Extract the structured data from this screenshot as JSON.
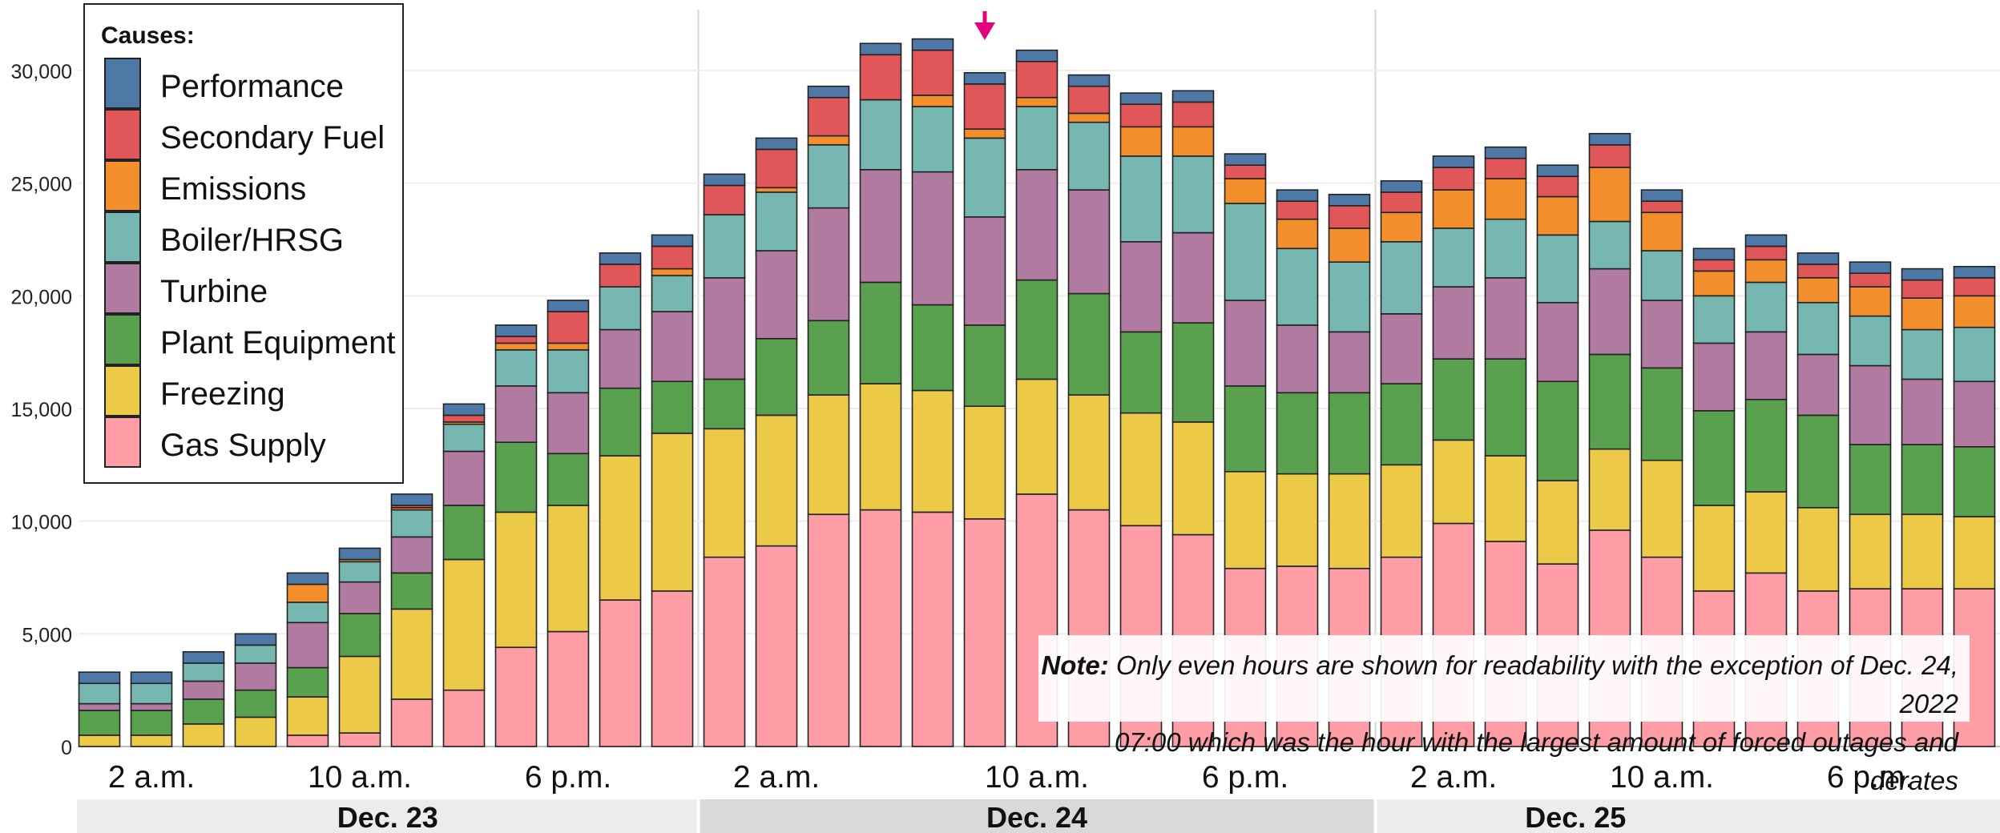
{
  "legend": {
    "title": "Causes:",
    "items": [
      {
        "label": "Performance",
        "color": "#4e79a7"
      },
      {
        "label": "Secondary Fuel",
        "color": "#e15759"
      },
      {
        "label": "Emissions",
        "color": "#f28e2b"
      },
      {
        "label": "Boiler/HRSG",
        "color": "#76b7b2"
      },
      {
        "label": "Turbine",
        "color": "#b07aa1"
      },
      {
        "label": "Plant Equipment",
        "color": "#59a14f"
      },
      {
        "label": "Freezing",
        "color": "#edc948"
      },
      {
        "label": "Gas Supply",
        "color": "#ff9da7"
      }
    ]
  },
  "note": {
    "bold": "Note:",
    "line1": "Only even hours are shown for readability with the exception of Dec. 24, 2022",
    "line2": "07:00 which was the hour with the largest amount of forced outages and derates"
  },
  "chart_data": {
    "type": "bar",
    "stacked": true,
    "ylim": [
      0,
      32000
    ],
    "yticks": [
      0,
      5000,
      10000,
      15000,
      20000,
      25000,
      30000
    ],
    "ytick_labels": [
      "0",
      "5,000",
      "10,000",
      "15,000",
      "20,000",
      "25,000",
      "30,000"
    ],
    "grid": true,
    "highlight_index": 17,
    "day_groups": [
      {
        "label": "Dec. 23",
        "start": 0,
        "end": 11
      },
      {
        "label": "Dec. 24",
        "start": 12,
        "end": 24
      },
      {
        "label": "Dec. 25",
        "start": 25,
        "end": 36
      }
    ],
    "tick_labels": [
      {
        "index": 1,
        "label": "2 a.m."
      },
      {
        "index": 5,
        "label": "10 a.m."
      },
      {
        "index": 9,
        "label": "6 p.m."
      },
      {
        "index": 13,
        "label": "2 a.m."
      },
      {
        "index": 18,
        "label": "10 a.m."
      },
      {
        "index": 22,
        "label": "6 p.m."
      },
      {
        "index": 26,
        "label": "2 a.m."
      },
      {
        "index": 30,
        "label": "10 a.m."
      },
      {
        "index": 34,
        "label": "6 p.m."
      }
    ],
    "series_order": [
      "Gas Supply",
      "Freezing",
      "Plant Equipment",
      "Turbine",
      "Boiler/HRSG",
      "Emissions",
      "Secondary Fuel",
      "Performance"
    ],
    "series": [
      {
        "name": "Gas Supply",
        "values": [
          0,
          0,
          0,
          0,
          500,
          600,
          2100,
          2500,
          4400,
          5100,
          6500,
          6900,
          8400,
          8900,
          10300,
          10500,
          10400,
          10100,
          11200,
          10500,
          9800,
          9400,
          7900,
          8000,
          7900,
          8400,
          9900,
          9100,
          8100,
          9600,
          8400,
          6900,
          7700,
          6900,
          7000,
          7000,
          7000
        ]
      },
      {
        "name": "Freezing",
        "values": [
          500,
          500,
          1000,
          1300,
          1700,
          3400,
          4000,
          5800,
          6000,
          5600,
          6400,
          7000,
          5700,
          5800,
          5300,
          5600,
          5400,
          5000,
          5100,
          5100,
          5000,
          5000,
          4300,
          4100,
          4200,
          4100,
          3700,
          3800,
          3700,
          3600,
          4300,
          3800,
          3600,
          3700,
          3300,
          3300,
          3200
        ]
      },
      {
        "name": "Plant Equipment",
        "values": [
          1100,
          1100,
          1100,
          1200,
          1300,
          1900,
          1600,
          2400,
          3100,
          2300,
          3000,
          2300,
          2200,
          3400,
          3300,
          4500,
          3800,
          3600,
          4400,
          4500,
          3600,
          4400,
          3800,
          3600,
          3600,
          3600,
          3600,
          4300,
          4400,
          4200,
          4100,
          4200,
          4100,
          4100,
          3100,
          3100,
          3100
        ]
      },
      {
        "name": "Turbine",
        "values": [
          300,
          300,
          800,
          1200,
          2000,
          1400,
          1600,
          2400,
          2500,
          2700,
          2600,
          3100,
          4500,
          3900,
          5000,
          5000,
          5900,
          4800,
          4900,
          4600,
          4000,
          4000,
          3800,
          3000,
          2700,
          3100,
          3200,
          3600,
          3500,
          3800,
          3000,
          3000,
          3000,
          2700,
          3500,
          2900,
          2900
        ]
      },
      {
        "name": "Boiler/HRSG",
        "values": [
          900,
          900,
          800,
          800,
          900,
          900,
          1200,
          1200,
          1600,
          1900,
          1900,
          1600,
          2800,
          2600,
          2800,
          3100,
          2900,
          3500,
          2800,
          3000,
          3800,
          3400,
          4300,
          3400,
          3100,
          3200,
          2600,
          2600,
          3000,
          2100,
          2200,
          2100,
          2200,
          2300,
          2200,
          2200,
          2400
        ]
      },
      {
        "name": "Emissions",
        "values": [
          0,
          0,
          0,
          0,
          800,
          100,
          100,
          100,
          300,
          300,
          0,
          300,
          0,
          200,
          400,
          0,
          500,
          400,
          400,
          400,
          1300,
          1300,
          1100,
          1300,
          1500,
          1300,
          1700,
          1800,
          1700,
          2400,
          1700,
          1100,
          1000,
          1100,
          1300,
          1400,
          1400
        ]
      },
      {
        "name": "Secondary Fuel",
        "values": [
          0,
          0,
          0,
          0,
          0,
          0,
          100,
          300,
          300,
          1400,
          1000,
          1000,
          1300,
          1700,
          1700,
          2000,
          2000,
          2000,
          1600,
          1200,
          1000,
          1100,
          600,
          800,
          1000,
          900,
          1000,
          900,
          900,
          1000,
          500,
          500,
          600,
          600,
          600,
          800,
          800
        ]
      },
      {
        "name": "Performance",
        "values": [
          500,
          500,
          500,
          500,
          500,
          500,
          500,
          500,
          500,
          500,
          500,
          500,
          500,
          500,
          500,
          500,
          500,
          500,
          500,
          500,
          500,
          500,
          500,
          500,
          500,
          500,
          500,
          500,
          500,
          500,
          500,
          500,
          500,
          500,
          500,
          500,
          500
        ]
      }
    ]
  }
}
